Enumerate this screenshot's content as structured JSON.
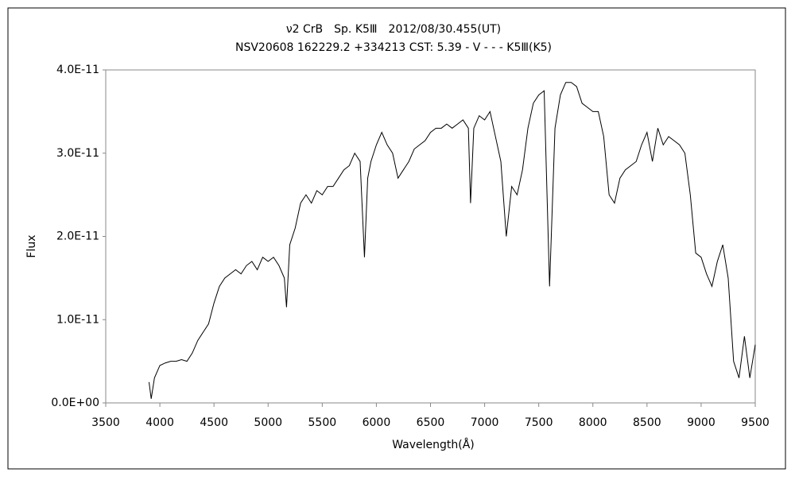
{
  "chart_data": {
    "type": "line",
    "title": "ν2 CrB　Sp. K5Ⅲ　2012/08/30.455(UT)",
    "subtitle": "NSV20608 162229.2 +334213 CST: 5.39 - V - - - K5Ⅲ(K5)",
    "x_label": "Wavelength(Å)",
    "y_label": "Flux",
    "xlim": [
      3500,
      9500
    ],
    "xticks": [
      3500,
      4000,
      4500,
      5000,
      5500,
      6000,
      6500,
      7000,
      7500,
      8000,
      8500,
      9000,
      9500
    ],
    "ylim": [
      0,
      4e-11
    ],
    "yticks": [
      {
        "value": 0,
        "label": "0.0E+00"
      },
      {
        "value": 1e-11,
        "label": "1.0E-11"
      },
      {
        "value": 2e-11,
        "label": "2.0E-11"
      },
      {
        "value": 3e-11,
        "label": "3.0E-11"
      },
      {
        "value": 4e-11,
        "label": "4.0E-11"
      }
    ],
    "grid": false,
    "series": [
      {
        "color": "#000000",
        "x": [
          3900,
          3920,
          3950,
          4000,
          4050,
          4100,
          4150,
          4200,
          4250,
          4300,
          4350,
          4400,
          4450,
          4500,
          4550,
          4600,
          4650,
          4700,
          4750,
          4800,
          4850,
          4900,
          4950,
          5000,
          5050,
          5100,
          5150,
          5170,
          5200,
          5250,
          5300,
          5350,
          5400,
          5450,
          5500,
          5550,
          5600,
          5650,
          5700,
          5750,
          5800,
          5850,
          5890,
          5920,
          5950,
          6000,
          6050,
          6100,
          6150,
          6200,
          6250,
          6300,
          6350,
          6400,
          6450,
          6500,
          6550,
          6600,
          6650,
          6700,
          6750,
          6800,
          6850,
          6870,
          6900,
          6950,
          7000,
          7050,
          7100,
          7150,
          7200,
          7250,
          7300,
          7350,
          7400,
          7450,
          7500,
          7550,
          7600,
          7650,
          7700,
          7750,
          7800,
          7850,
          7900,
          7950,
          8000,
          8050,
          8100,
          8150,
          8200,
          8250,
          8300,
          8350,
          8400,
          8450,
          8500,
          8550,
          8600,
          8650,
          8700,
          8750,
          8800,
          8850,
          8900,
          8950,
          9000,
          9050,
          9100,
          9150,
          9200,
          9250,
          9300,
          9350,
          9400,
          9450,
          9500
        ],
        "values": [
          2.5e-12,
          5e-13,
          3e-12,
          4.5e-12,
          4.8e-12,
          5e-12,
          5e-12,
          5.2e-12,
          5e-12,
          6e-12,
          7.5e-12,
          8.5e-12,
          9.5e-12,
          1.2e-11,
          1.4e-11,
          1.5e-11,
          1.55e-11,
          1.6e-11,
          1.55e-11,
          1.65e-11,
          1.7e-11,
          1.6e-11,
          1.75e-11,
          1.7e-11,
          1.75e-11,
          1.65e-11,
          1.5e-11,
          1.15e-11,
          1.9e-11,
          2.1e-11,
          2.4e-11,
          2.5e-11,
          2.4e-11,
          2.55e-11,
          2.5e-11,
          2.6e-11,
          2.6e-11,
          2.7e-11,
          2.8e-11,
          2.85e-11,
          3e-11,
          2.9e-11,
          1.75e-11,
          2.7e-11,
          2.9e-11,
          3.1e-11,
          3.25e-11,
          3.1e-11,
          3e-11,
          2.7e-11,
          2.8e-11,
          2.9e-11,
          3.05e-11,
          3.1e-11,
          3.15e-11,
          3.25e-11,
          3.3e-11,
          3.3e-11,
          3.35e-11,
          3.3e-11,
          3.35e-11,
          3.4e-11,
          3.3e-11,
          2.4e-11,
          3.3e-11,
          3.45e-11,
          3.4e-11,
          3.5e-11,
          3.2e-11,
          2.9e-11,
          2e-11,
          2.6e-11,
          2.5e-11,
          2.8e-11,
          3.3e-11,
          3.6e-11,
          3.7e-11,
          3.75e-11,
          1.4e-11,
          3.3e-11,
          3.7e-11,
          3.85e-11,
          3.85e-11,
          3.8e-11,
          3.6e-11,
          3.55e-11,
          3.5e-11,
          3.5e-11,
          3.2e-11,
          2.5e-11,
          2.4e-11,
          2.7e-11,
          2.8e-11,
          2.85e-11,
          2.9e-11,
          3.1e-11,
          3.25e-11,
          2.9e-11,
          3.3e-11,
          3.1e-11,
          3.2e-11,
          3.15e-11,
          3.1e-11,
          3e-11,
          2.5e-11,
          1.8e-11,
          1.75e-11,
          1.55e-11,
          1.4e-11,
          1.7e-11,
          1.9e-11,
          1.5e-11,
          5e-12,
          3e-12,
          8e-12,
          3e-12,
          7e-12
        ]
      }
    ]
  }
}
